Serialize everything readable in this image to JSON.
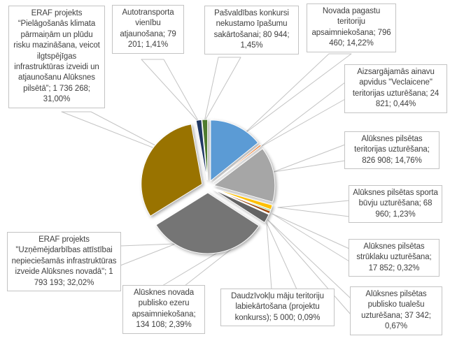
{
  "chart_data": {
    "type": "pie",
    "title": "",
    "legend_position": "none",
    "start_angle_deg": 0,
    "direction": "clockwise",
    "exploded": true,
    "label_format": "name; value; percent",
    "style": {
      "background": "#FFFFFF",
      "label_text_color": "#404040",
      "label_box_border": "#C3C3C3",
      "leader_line_color": "#C3C3C3"
    },
    "slices": [
      {
        "name": "Novada pagastu teritoriju apsaimniekošana",
        "value": 796460,
        "value_display": "796 460",
        "percent": 14.22,
        "percent_display": "14,22%",
        "color": "#5B9BD5",
        "display": "Novada pagastu teritoriju apsaimniekošana; 796 460; 14,22%"
      },
      {
        "name": "Aizsargājamās ainavu apvidus \"Veclaicene\" teritorijas uzturēšana",
        "value": 24821,
        "value_display": "24 821",
        "percent": 0.44,
        "percent_display": "0,44%",
        "color": "#ED7D31",
        "display": "Aizsargājamās ainavu apvidus \"Veclaicene\" teritorijas uzturēšana; 24 821; 0,44%"
      },
      {
        "name": "Alūksnes pilsētas teritorijas uzturēšana",
        "value": 826908,
        "value_display": "826 908",
        "percent": 14.76,
        "percent_display": "14,76%",
        "color": "#A6A6A6",
        "display": "Alūksnes pilsētas teritorijas uzturēšana; 826 908; 14,76%"
      },
      {
        "name": "Alūksnes pilsētas sporta būvju uzturēšana",
        "value": 68960,
        "value_display": "68 960",
        "percent": 1.23,
        "percent_display": "1,23%",
        "color": "#FFC000",
        "display": "Alūksnes pilsētas sporta būvju uzturēšana; 68 960; 1,23%"
      },
      {
        "name": "Alūksnes pilsētas strūklaku uzturēšana",
        "value": 17852,
        "value_display": "17 852",
        "percent": 0.32,
        "percent_display": "0,32%",
        "color": "#4EA72E",
        "display": "Alūksnes pilsētas strūklaku uzturēšana; 17 852; 0,32%"
      },
      {
        "name": "Alūksnes pilsētas publisko tualešu uzturēšana",
        "value": 37342,
        "value_display": "37 342",
        "percent": 0.67,
        "percent_display": "0,67%",
        "color": "#9E480E",
        "display": "Alūksnes pilsētas publisko tualešu uzturēšana; 37 342; 0,67%"
      },
      {
        "name": "Daudzīvokļu māju teritoriju labiekārtošana (projektu konkurss)",
        "value": 5000,
        "value_display": "5 000",
        "percent": 0.09,
        "percent_display": "0,09%",
        "color": "#843C0C",
        "display": "Daudzīvokļu māju teritoriju labiekārtošana (projektu konkurss); 5 000; 0,09%"
      },
      {
        "name": "Alūsknes novada publisko ezeru apsaimniekošana",
        "value": 134108,
        "value_display": "134 108",
        "percent": 2.39,
        "percent_display": "2,39%",
        "color": "#636363",
        "display": "Alūsknes novada publisko ezeru apsaimniekošana; 134 108; 2,39%"
      },
      {
        "name": "ERAF projekts \"Uzņēmējdarbības attīstībai nepieciešamās infrastruktūras izveide Alūksnes novadā\"",
        "value": 1793193,
        "value_display": "1 793 193",
        "percent": 32.02,
        "percent_display": "32,02%",
        "color": "#757575",
        "display": "ERAF projekts \"Uzņēmējdarbības attīstībai nepieciešamās infrastruktūras izveide Alūksnes novadā\"; 1 793 193; 32,02%"
      },
      {
        "name": "ERAF projekts “Pielāgošanās klimata pārmaiņām un plūdu risku mazināšana, veicot ilgtspējīgas infrastruktūras izveidi un atjaunošanu Alūksnes pilsētā”",
        "value": 1736268,
        "value_display": "1 736 268",
        "percent": 31.0,
        "percent_display": "31,00%",
        "color": "#997300",
        "display": "ERAF projekts “Pielāgošanās klimata pārmaiņām un plūdu risku mazināšana, veicot ilgtspējīgas infrastruktūras izveidi un atjaunošanu Alūksnes pilsētā”; 1 736 268; 31,00%"
      },
      {
        "name": "Autotransporta vienību atjaunošana",
        "value": 79201,
        "value_display": "79 201",
        "percent": 1.41,
        "percent_display": "1,41%",
        "color": "#203864",
        "display": "Autotransporta vienību atjaunošana; 79 201; 1,41%"
      },
      {
        "name": "Pašvaldības konkursi nekustamo īpašumu sakārtošanai",
        "value": 80944,
        "value_display": "80 944",
        "percent": 1.45,
        "percent_display": "1,45%",
        "color": "#4F7B2F",
        "display": "Pašvaldības konkursi nekustamo īpašumu sakārtošanai; 80 944; 1,45%"
      }
    ]
  }
}
